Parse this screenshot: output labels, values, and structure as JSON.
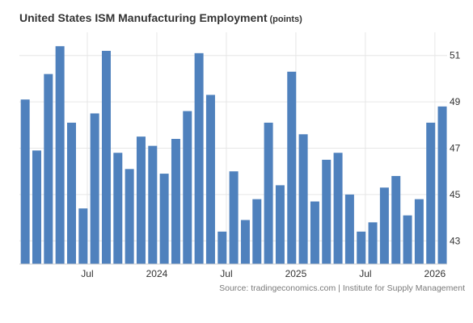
{
  "chart_data": {
    "type": "bar",
    "title": "United States ISM Manufacturing Employment",
    "unit": "(points)",
    "x_tick_labels": [
      "Jul",
      "2024",
      "Jul",
      "2025",
      "Jul",
      "2026"
    ],
    "x_tick_positions": [
      6,
      12,
      18,
      24,
      30,
      36
    ],
    "values": [
      49.1,
      46.9,
      50.2,
      51.4,
      48.1,
      44.4,
      48.5,
      51.2,
      46.8,
      46.1,
      47.5,
      47.1,
      45.9,
      47.4,
      48.6,
      51.1,
      49.3,
      43.4,
      46.0,
      43.9,
      44.8,
      48.1,
      45.4,
      50.3,
      47.6,
      44.7,
      46.5,
      46.8,
      45.0,
      43.4,
      43.8,
      45.3,
      45.8,
      44.1,
      44.8,
      48.1,
      48.8
    ],
    "y_ticks": [
      43,
      45,
      47,
      49,
      51
    ],
    "ylim": [
      42,
      52
    ],
    "bar_color": "#4f81bd",
    "grid": true,
    "y_axis_position": "right",
    "source": "Source: tradingeconomics.com | Institute for Supply Management"
  }
}
